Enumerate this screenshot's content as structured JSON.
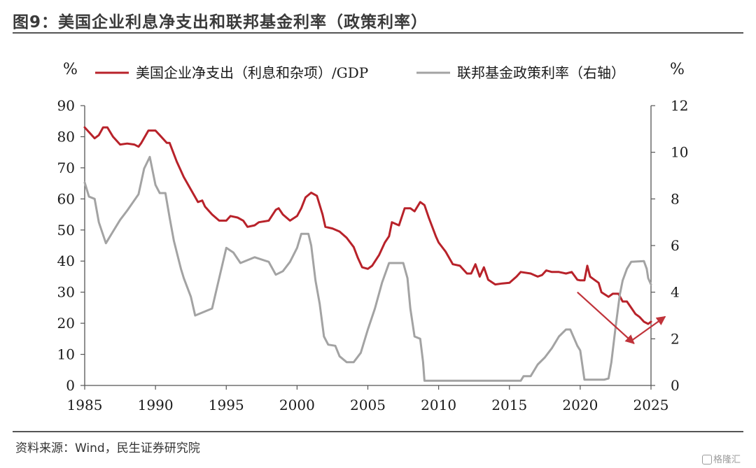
{
  "title": "图9：美国企业利息净支出和联邦基金利率（政策利率）",
  "source": "资料来源：Wind，民生证券研究院",
  "watermark": "格隆汇",
  "colors": {
    "red": "#b8222a",
    "gray": "#a3a3a3",
    "axis": "#555555",
    "arrow": "#c0333a"
  },
  "chart_data": {
    "type": "line",
    "y_left_unit": "%",
    "y_right_unit": "%",
    "x_ticks": [
      "1985",
      "1990",
      "1995",
      "2000",
      "2005",
      "2010",
      "2015",
      "2020",
      "2025"
    ],
    "y_left_ticks": [
      "0",
      "10",
      "20",
      "30",
      "40",
      "50",
      "60",
      "70",
      "80",
      "90"
    ],
    "y_right_ticks": [
      "0",
      "2",
      "4",
      "6",
      "8",
      "10",
      "12"
    ],
    "x_range": [
      1985,
      2025
    ],
    "y_left_range": [
      0,
      90
    ],
    "y_right_range": [
      0,
      12
    ],
    "legend_position": "top",
    "grid": false,
    "series": [
      {
        "name": "美国企业净支出（利息和杂项）/GDP",
        "axis": "left",
        "color": "#b8222a",
        "points": [
          [
            1985.0,
            83
          ],
          [
            1985.4,
            81
          ],
          [
            1985.7,
            79.5
          ],
          [
            1986.0,
            80.5
          ],
          [
            1986.3,
            83
          ],
          [
            1986.6,
            83
          ],
          [
            1987.0,
            80
          ],
          [
            1987.5,
            77.5
          ],
          [
            1988.0,
            77.8
          ],
          [
            1988.5,
            77.5
          ],
          [
            1988.8,
            76.8
          ],
          [
            1989.0,
            78
          ],
          [
            1989.5,
            82
          ],
          [
            1990.0,
            82
          ],
          [
            1990.3,
            80.5
          ],
          [
            1990.8,
            78
          ],
          [
            1991.0,
            78
          ],
          [
            1991.5,
            72
          ],
          [
            1992.0,
            67
          ],
          [
            1992.5,
            63
          ],
          [
            1993.0,
            59
          ],
          [
            1993.3,
            59.5
          ],
          [
            1993.5,
            57.5
          ],
          [
            1994.0,
            55
          ],
          [
            1994.5,
            53
          ],
          [
            1995.0,
            53
          ],
          [
            1995.3,
            54.5
          ],
          [
            1995.8,
            54
          ],
          [
            1996.2,
            53
          ],
          [
            1996.5,
            51
          ],
          [
            1997.0,
            51.5
          ],
          [
            1997.3,
            52.5
          ],
          [
            1998.0,
            53
          ],
          [
            1998.5,
            56.5
          ],
          [
            1998.7,
            57
          ],
          [
            1999.0,
            55
          ],
          [
            1999.5,
            53
          ],
          [
            2000.0,
            54.5
          ],
          [
            2000.3,
            57
          ],
          [
            2000.6,
            60.5
          ],
          [
            2001.0,
            62
          ],
          [
            2001.4,
            61
          ],
          [
            2001.8,
            55
          ],
          [
            2002.0,
            51
          ],
          [
            2002.5,
            50.5
          ],
          [
            2003.0,
            49.5
          ],
          [
            2003.5,
            47.5
          ],
          [
            2004.0,
            44.5
          ],
          [
            2004.3,
            41
          ],
          [
            2004.6,
            38
          ],
          [
            2005.0,
            37.5
          ],
          [
            2005.3,
            38.5
          ],
          [
            2005.8,
            42
          ],
          [
            2006.2,
            46
          ],
          [
            2006.5,
            48
          ],
          [
            2006.7,
            52.5
          ],
          [
            2007.2,
            51.5
          ],
          [
            2007.6,
            57
          ],
          [
            2008.0,
            57
          ],
          [
            2008.3,
            56
          ],
          [
            2008.7,
            59
          ],
          [
            2009.0,
            58
          ],
          [
            2009.3,
            54
          ],
          [
            2009.8,
            48
          ],
          [
            2010.0,
            46
          ],
          [
            2010.5,
            43
          ],
          [
            2011.0,
            39
          ],
          [
            2011.5,
            38.5
          ],
          [
            2012.0,
            36
          ],
          [
            2012.3,
            36
          ],
          [
            2012.6,
            39
          ],
          [
            2012.9,
            35
          ],
          [
            2013.2,
            38
          ],
          [
            2013.5,
            34
          ],
          [
            2014.0,
            32.5
          ],
          [
            2014.5,
            32.8
          ],
          [
            2015.0,
            33
          ],
          [
            2015.5,
            35
          ],
          [
            2015.8,
            36.5
          ],
          [
            2016.5,
            36
          ],
          [
            2017.0,
            35
          ],
          [
            2017.3,
            35.5
          ],
          [
            2017.6,
            37
          ],
          [
            2018.0,
            36.5
          ],
          [
            2018.5,
            36.5
          ],
          [
            2019.0,
            36
          ],
          [
            2019.4,
            36.5
          ],
          [
            2019.8,
            34
          ],
          [
            2020.0,
            33.8
          ],
          [
            2020.3,
            33.8
          ],
          [
            2020.5,
            38.5
          ],
          [
            2020.7,
            35
          ],
          [
            2021.0,
            34
          ],
          [
            2021.3,
            33
          ],
          [
            2021.5,
            30
          ],
          [
            2022.0,
            28.5
          ],
          [
            2022.3,
            29.5
          ],
          [
            2022.7,
            29.5
          ],
          [
            2023.0,
            27
          ],
          [
            2023.3,
            27
          ],
          [
            2023.6,
            25
          ],
          [
            2023.9,
            23
          ],
          [
            2024.2,
            22
          ],
          [
            2024.5,
            20.5
          ],
          [
            2024.8,
            19.8
          ],
          [
            2025.0,
            20.5
          ]
        ]
      },
      {
        "name": "联邦基金政策利率（右轴）",
        "axis": "right",
        "color": "#a3a3a3",
        "points": [
          [
            1985.0,
            8.7
          ],
          [
            1985.3,
            8.1
          ],
          [
            1985.7,
            8.0
          ],
          [
            1986.0,
            7.0
          ],
          [
            1986.5,
            6.1
          ],
          [
            1987.0,
            6.6
          ],
          [
            1987.5,
            7.1
          ],
          [
            1988.0,
            7.5
          ],
          [
            1988.8,
            8.2
          ],
          [
            1989.2,
            9.3
          ],
          [
            1989.6,
            9.8
          ],
          [
            1990.0,
            8.6
          ],
          [
            1990.3,
            8.25
          ],
          [
            1990.7,
            8.25
          ],
          [
            1991.0,
            7.2
          ],
          [
            1991.3,
            6.2
          ],
          [
            1991.8,
            5.0
          ],
          [
            1992.0,
            4.6
          ],
          [
            1992.5,
            3.8
          ],
          [
            1992.8,
            3.0
          ],
          [
            1994.0,
            3.3
          ],
          [
            1994.5,
            4.6
          ],
          [
            1995.0,
            5.9
          ],
          [
            1995.5,
            5.7
          ],
          [
            1996.0,
            5.25
          ],
          [
            1997.0,
            5.5
          ],
          [
            1998.0,
            5.3
          ],
          [
            1998.5,
            4.75
          ],
          [
            1999.0,
            4.9
          ],
          [
            1999.5,
            5.3
          ],
          [
            2000.0,
            5.9
          ],
          [
            2000.3,
            6.5
          ],
          [
            2000.8,
            6.5
          ],
          [
            2001.0,
            6.0
          ],
          [
            2001.3,
            4.5
          ],
          [
            2001.6,
            3.5
          ],
          [
            2001.9,
            2.1
          ],
          [
            2002.2,
            1.75
          ],
          [
            2002.7,
            1.7
          ],
          [
            2003.0,
            1.25
          ],
          [
            2003.5,
            1.0
          ],
          [
            2004.0,
            1.0
          ],
          [
            2004.5,
            1.4
          ],
          [
            2005.0,
            2.4
          ],
          [
            2005.5,
            3.3
          ],
          [
            2006.0,
            4.4
          ],
          [
            2006.5,
            5.25
          ],
          [
            2007.0,
            5.25
          ],
          [
            2007.5,
            5.25
          ],
          [
            2007.8,
            4.6
          ],
          [
            2008.0,
            3.3
          ],
          [
            2008.3,
            2.1
          ],
          [
            2008.7,
            2.0
          ],
          [
            2008.9,
            1.0
          ],
          [
            2009.0,
            0.2
          ],
          [
            2015.8,
            0.2
          ],
          [
            2016.0,
            0.4
          ],
          [
            2016.5,
            0.4
          ],
          [
            2017.0,
            0.9
          ],
          [
            2017.5,
            1.2
          ],
          [
            2018.0,
            1.6
          ],
          [
            2018.5,
            2.1
          ],
          [
            2019.0,
            2.4
          ],
          [
            2019.3,
            2.4
          ],
          [
            2019.8,
            1.7
          ],
          [
            2020.0,
            1.5
          ],
          [
            2020.3,
            0.25
          ],
          [
            2021.7,
            0.25
          ],
          [
            2022.0,
            0.3
          ],
          [
            2022.2,
            1.0
          ],
          [
            2022.5,
            2.5
          ],
          [
            2022.8,
            3.9
          ],
          [
            2023.0,
            4.5
          ],
          [
            2023.3,
            5.0
          ],
          [
            2023.6,
            5.3
          ],
          [
            2024.5,
            5.33
          ],
          [
            2024.7,
            5.0
          ],
          [
            2024.8,
            4.6
          ],
          [
            2025.0,
            4.33
          ]
        ]
      }
    ],
    "annotations": [
      {
        "type": "arrow",
        "color": "#c0333a",
        "from": [
          2019.8,
          30.0
        ],
        "to": [
          2023.8,
          13.5
        ]
      },
      {
        "type": "arrow",
        "color": "#c0333a",
        "from": [
          2023.5,
          14.0
        ],
        "to": [
          2026.0,
          2.95
        ],
        "to_axis": "right"
      }
    ]
  }
}
